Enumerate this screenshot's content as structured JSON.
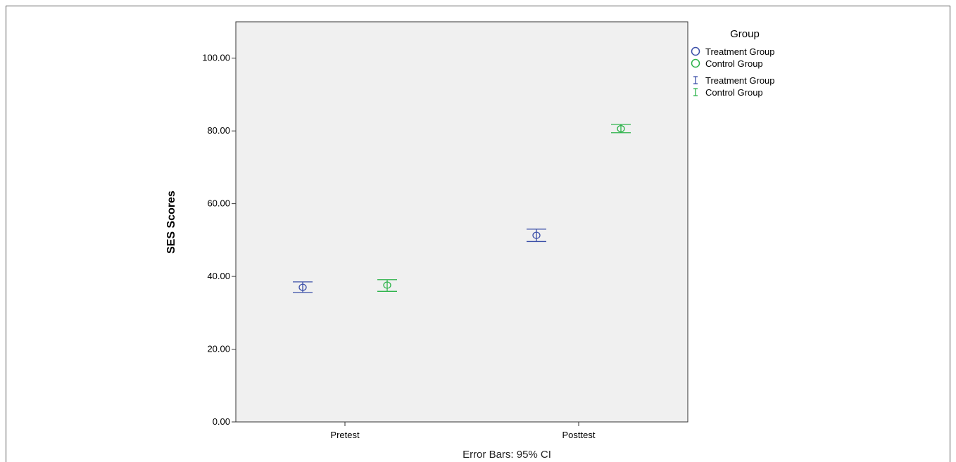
{
  "chart_data": {
    "type": "scatter",
    "subtype": "error-bar-plot",
    "categories": [
      "Pretest",
      "Posttest"
    ],
    "ylabel": "SES Scores",
    "xlabel": "",
    "footer": "Error Bars: 95% CI",
    "ylim": [
      0,
      110
    ],
    "yticks": [
      0,
      20,
      40,
      60,
      80,
      100
    ],
    "ytick_labels": [
      "0.00",
      "20.00",
      "40.00",
      "60.00",
      "80.00",
      "100.00"
    ],
    "grid": false,
    "legend": {
      "title": "Group",
      "position": "right",
      "entries": [
        {
          "label": "Treatment Group",
          "marker": "circle",
          "color": "#3b4fa8"
        },
        {
          "label": "Control Group",
          "marker": "circle",
          "color": "#2db34a"
        },
        {
          "label": "Treatment Group",
          "marker": "errorbar",
          "color": "#3b4fa8"
        },
        {
          "label": "Control Group",
          "marker": "errorbar",
          "color": "#2db34a"
        }
      ]
    },
    "series": [
      {
        "name": "Treatment Group",
        "color": "#3b4fa8",
        "points": [
          {
            "category": "Pretest",
            "mean": 37.0,
            "ci_low": 35.6,
            "ci_high": 38.5
          },
          {
            "category": "Posttest",
            "mean": 51.3,
            "ci_low": 49.6,
            "ci_high": 53.0
          }
        ]
      },
      {
        "name": "Control Group",
        "color": "#2db34a",
        "points": [
          {
            "category": "Pretest",
            "mean": 37.6,
            "ci_low": 35.9,
            "ci_high": 39.1
          },
          {
            "category": "Posttest",
            "mean": 80.6,
            "ci_low": 79.5,
            "ci_high": 81.8
          }
        ]
      }
    ]
  }
}
